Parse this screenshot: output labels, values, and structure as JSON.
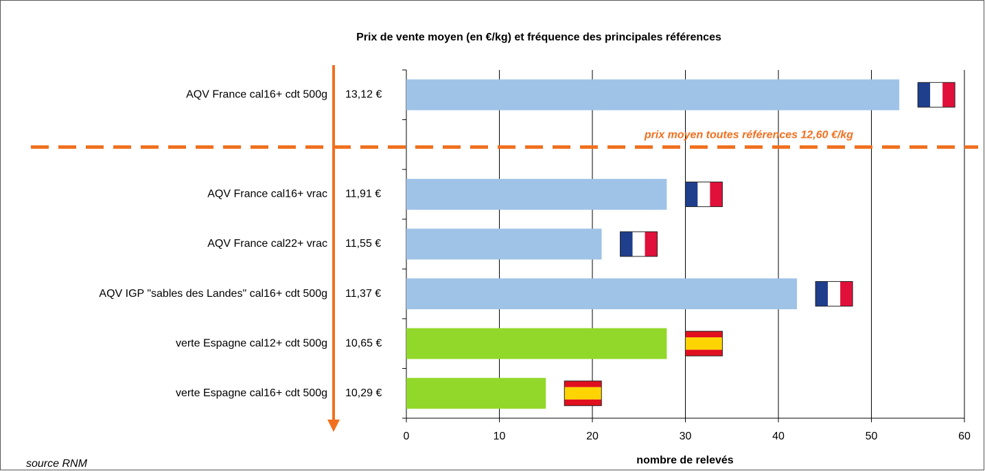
{
  "chart_data": {
    "type": "bar",
    "orientation": "horizontal",
    "title": "Prix de vente moyen (en €/kg) et fréquence des principales références",
    "categories": [
      "AQV France cal16+ cdt 500g",
      null,
      "AQV France cal16+ vrac",
      "AQV France cal22+ vrac",
      "AQV IGP \"sables des Landes\" cal16+ cdt 500g",
      "verte Espagne cal12+ cdt 500g",
      "verte Espagne cal16+ cdt 500g"
    ],
    "price_labels": [
      "13,12 €",
      null,
      "11,91 €",
      "11,55 €",
      "11,37 €",
      "10,65 €",
      "10,29 €"
    ],
    "values": [
      53,
      null,
      28,
      21,
      42,
      28,
      15
    ],
    "colors": [
      "#9fc3e7",
      null,
      "#9fc3e7",
      "#9fc3e7",
      "#9fc3e7",
      "#92d82a",
      "#92d82a"
    ],
    "flags": [
      {
        "stripes": "vertical",
        "colors": [
          "#1f3e8c",
          "#ffffff",
          "#e0103a"
        ]
      },
      null,
      {
        "stripes": "vertical",
        "colors": [
          "#1f3e8c",
          "#ffffff",
          "#e0103a"
        ]
      },
      {
        "stripes": "vertical",
        "colors": [
          "#1f3e8c",
          "#ffffff",
          "#e0103a"
        ]
      },
      {
        "stripes": "vertical",
        "colors": [
          "#1f3e8c",
          "#ffffff",
          "#e0103a"
        ]
      },
      {
        "stripes": "horizontal",
        "colors": [
          "#e0101e",
          "#ffd400",
          "#e0101e"
        ]
      },
      {
        "stripes": "horizontal",
        "colors": [
          "#e0101e",
          "#ffd400",
          "#e0101e"
        ]
      }
    ],
    "annotation": "prix moyen toutes références 12,60 €/kg",
    "annotation_color": "#f07020",
    "xlabel": "nombre de relevés",
    "source": "source RNM",
    "xlim": [
      0,
      60
    ],
    "xticks": [
      0,
      10,
      20,
      30,
      40,
      50,
      60
    ],
    "grid": true
  }
}
